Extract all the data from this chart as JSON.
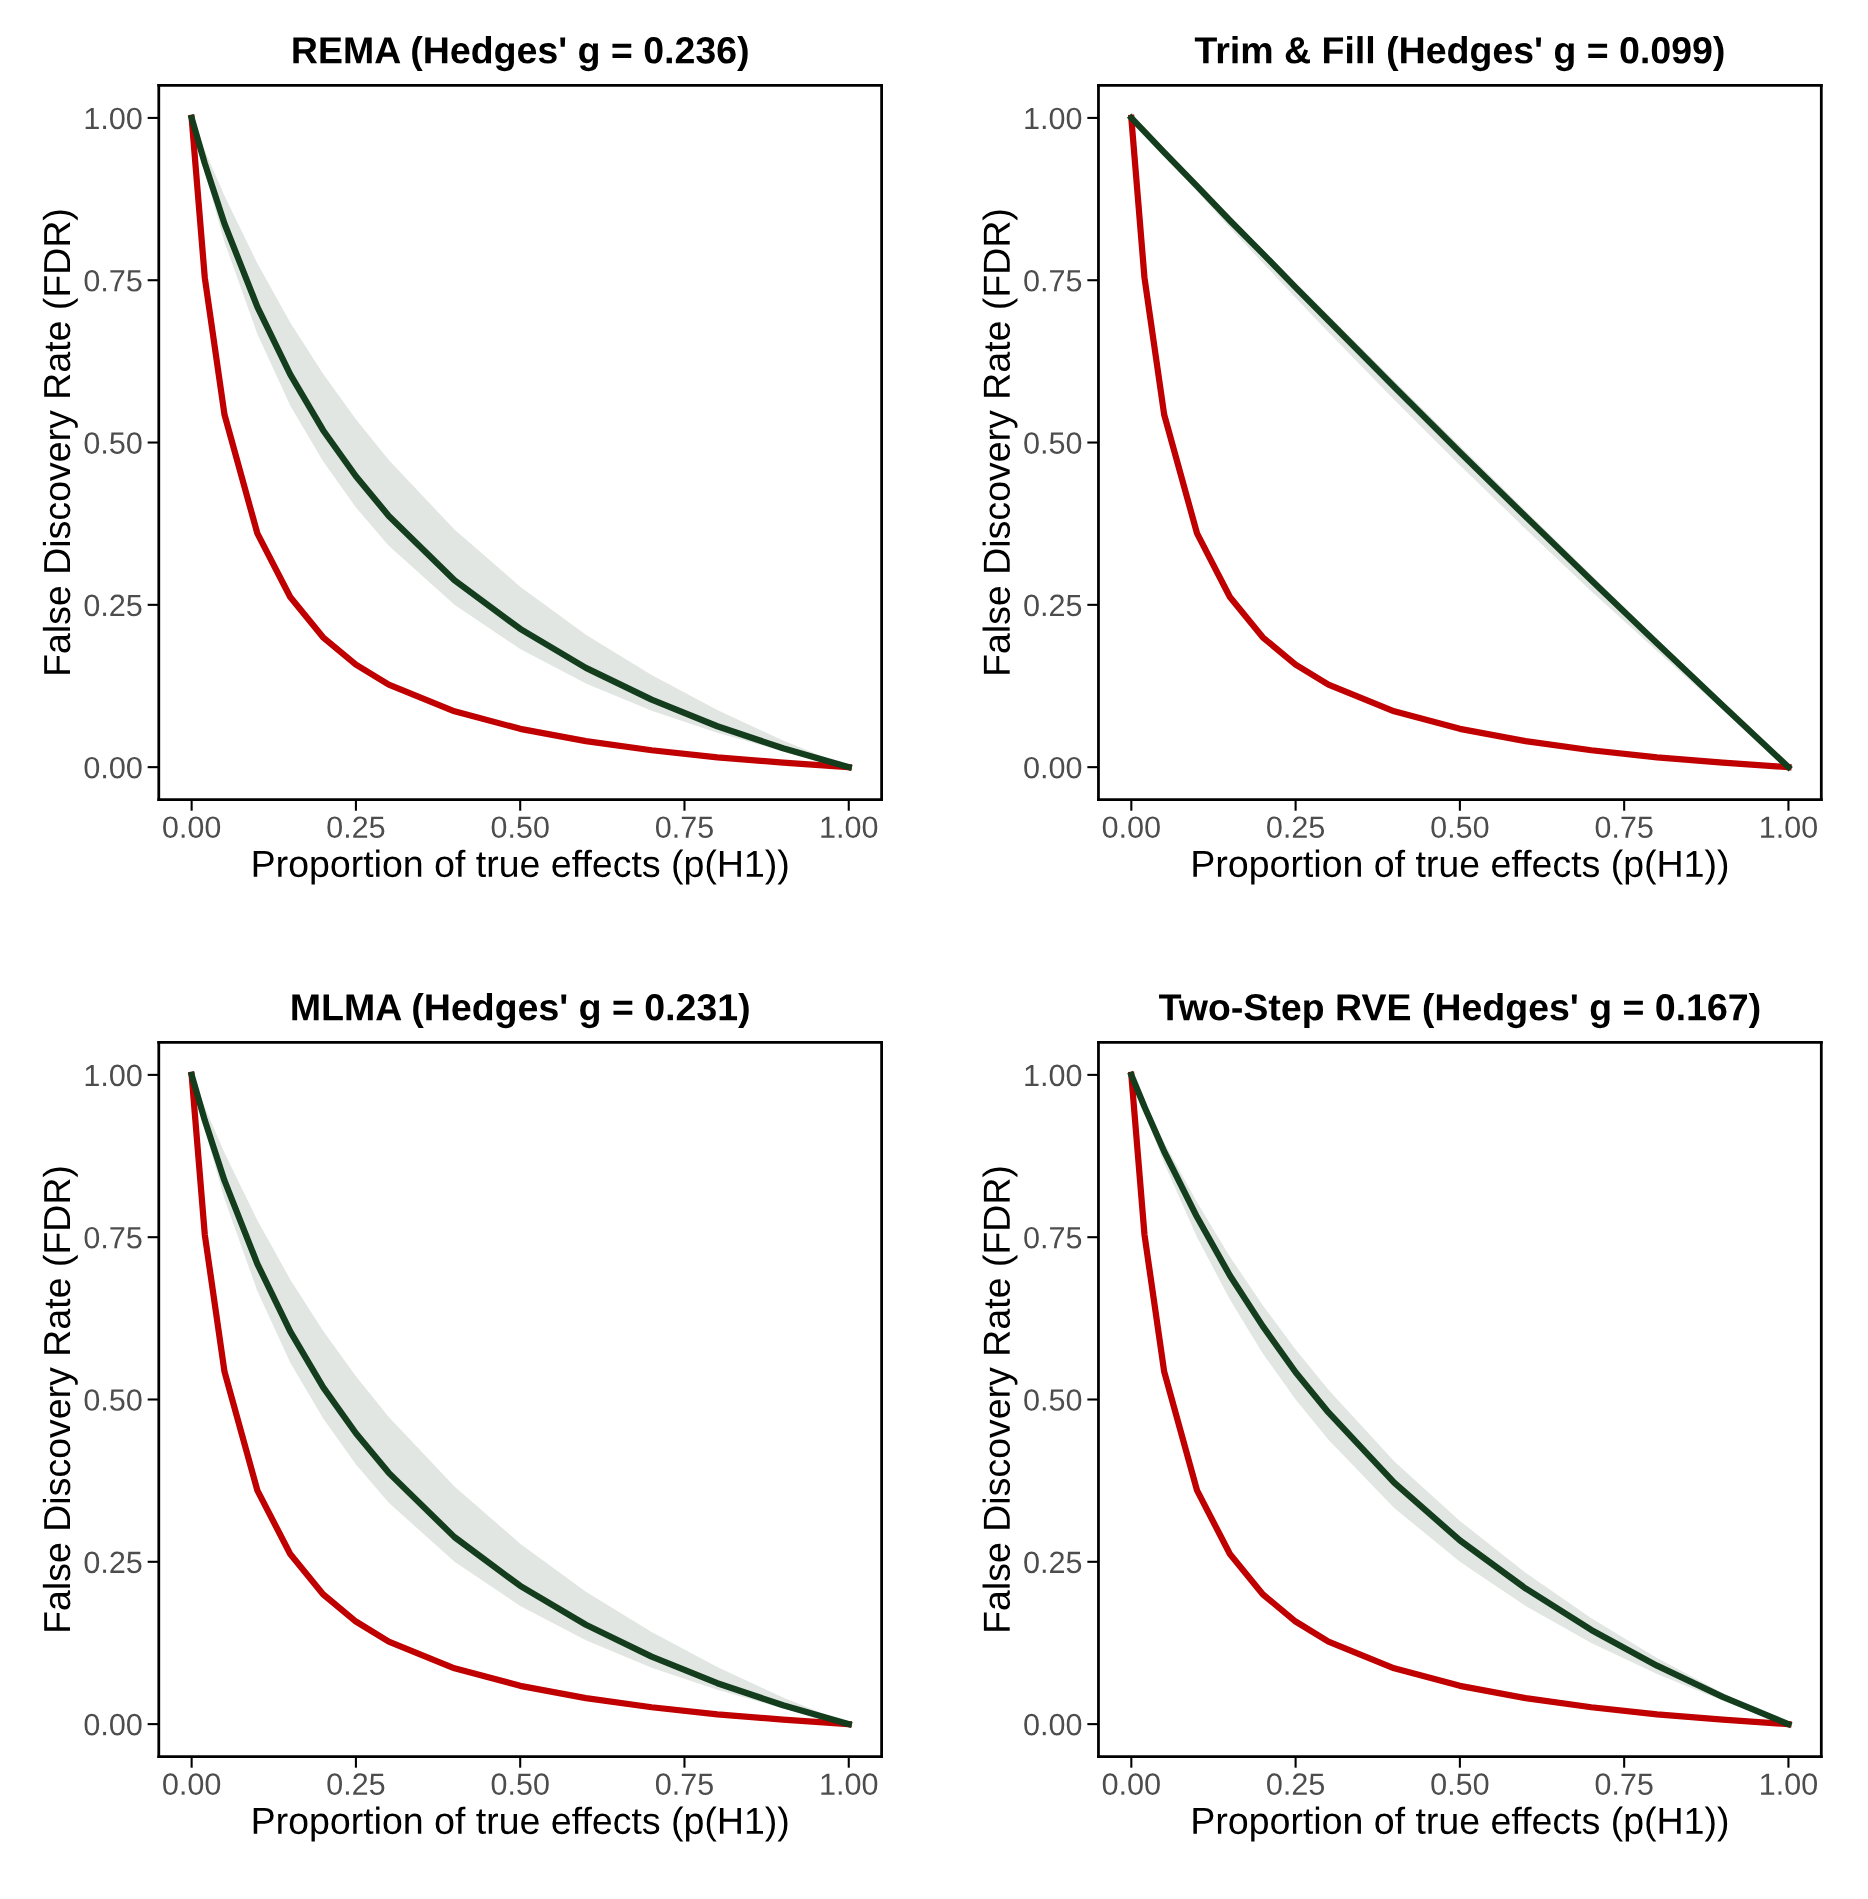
{
  "chart_data": [
    {
      "type": "line",
      "title": "REMA (Hedges' g = 0.236)",
      "xlabel": "Proportion of true effects (p(H1))",
      "ylabel": "False Discovery Rate (FDR)",
      "x": [
        0,
        0.02,
        0.05,
        0.1,
        0.15,
        0.2,
        0.25,
        0.3,
        0.4,
        0.5,
        0.6,
        0.7,
        0.8,
        0.9,
        1
      ],
      "series": [
        {
          "color": "#c00000",
          "values": [
            1,
            0.754,
            0.543,
            0.36,
            0.262,
            0.2,
            0.158,
            0.127,
            0.086,
            0.059,
            0.04,
            0.026,
            0.015,
            0.007,
            0
          ]
        },
        {
          "color": "#143d1e",
          "values": [
            1,
            0.93,
            0.837,
            0.709,
            0.605,
            0.519,
            0.448,
            0.387,
            0.288,
            0.213,
            0.153,
            0.104,
            0.063,
            0.029,
            0
          ],
          "lower": [
            1,
            0.916,
            0.809,
            0.667,
            0.557,
            0.471,
            0.4,
            0.341,
            0.25,
            0.182,
            0.129,
            0.087,
            0.053,
            0.024,
            0
          ],
          "upper": [
            1,
            0.95,
            0.88,
            0.776,
            0.685,
            0.606,
            0.536,
            0.473,
            0.366,
            0.278,
            0.204,
            0.142,
            0.088,
            0.041,
            0
          ]
        }
      ],
      "xlim": [
        -0.05,
        1.05
      ],
      "ylim": [
        -0.05,
        1.05
      ],
      "xticks": [
        {
          "value": 0,
          "label": "0.00"
        },
        {
          "value": 0.25,
          "label": "0.25"
        },
        {
          "value": 0.5,
          "label": "0.50"
        },
        {
          "value": 0.75,
          "label": "0.75"
        },
        {
          "value": 1,
          "label": "1.00"
        }
      ],
      "yticks": [
        {
          "value": 0,
          "label": "0.00"
        },
        {
          "value": 0.25,
          "label": "0.25"
        },
        {
          "value": 0.5,
          "label": "0.50"
        },
        {
          "value": 0.75,
          "label": "0.75"
        },
        {
          "value": 1,
          "label": "1.00"
        }
      ],
      "grid": false,
      "legend": false,
      "line_style": "solid",
      "marker": "none"
    },
    {
      "type": "line",
      "title": "Trim & Fill (Hedges' g = 0.099)",
      "xlabel": "Proportion of true effects (p(H1))",
      "ylabel": "False Discovery Rate (FDR)",
      "x": [
        0,
        0.02,
        0.05,
        0.1,
        0.15,
        0.2,
        0.25,
        0.3,
        0.4,
        0.5,
        0.6,
        0.7,
        0.8,
        0.9,
        1
      ],
      "series": [
        {
          "color": "#c00000",
          "values": [
            1,
            0.754,
            0.543,
            0.36,
            0.262,
            0.2,
            0.158,
            0.127,
            0.086,
            0.059,
            0.04,
            0.026,
            0.015,
            0.007,
            0
          ]
        },
        {
          "color": "#143d1e",
          "values": [
            1,
            0.979,
            0.947,
            0.895,
            0.842,
            0.791,
            0.739,
            0.688,
            0.586,
            0.485,
            0.386,
            0.288,
            0.191,
            0.095,
            0
          ],
          "lower": [
            1,
            0.977,
            0.943,
            0.887,
            0.831,
            0.777,
            0.723,
            0.67,
            0.566,
            0.465,
            0.367,
            0.271,
            0.179,
            0.088,
            0
          ],
          "upper": [
            1,
            0.98,
            0.949,
            0.898,
            0.847,
            0.797,
            0.746,
            0.696,
            0.595,
            0.495,
            0.395,
            0.296,
            0.197,
            0.098,
            0
          ]
        }
      ],
      "xlim": [
        -0.05,
        1.05
      ],
      "ylim": [
        -0.05,
        1.05
      ],
      "xticks": [
        {
          "value": 0,
          "label": "0.00"
        },
        {
          "value": 0.25,
          "label": "0.25"
        },
        {
          "value": 0.5,
          "label": "0.50"
        },
        {
          "value": 0.75,
          "label": "0.75"
        },
        {
          "value": 1,
          "label": "1.00"
        }
      ],
      "yticks": [
        {
          "value": 0,
          "label": "0.00"
        },
        {
          "value": 0.25,
          "label": "0.25"
        },
        {
          "value": 0.5,
          "label": "0.50"
        },
        {
          "value": 0.75,
          "label": "0.75"
        },
        {
          "value": 1,
          "label": "1.00"
        }
      ],
      "grid": false,
      "legend": false,
      "line_style": "solid",
      "marker": "none"
    },
    {
      "type": "line",
      "title": "MLMA (Hedges' g = 0.231)",
      "xlabel": "Proportion of true effects (p(H1))",
      "ylabel": "False Discovery Rate (FDR)",
      "x": [
        0,
        0.02,
        0.05,
        0.1,
        0.15,
        0.2,
        0.25,
        0.3,
        0.4,
        0.5,
        0.6,
        0.7,
        0.8,
        0.9,
        1
      ],
      "series": [
        {
          "color": "#c00000",
          "values": [
            1,
            0.754,
            0.543,
            0.36,
            0.262,
            0.2,
            0.158,
            0.127,
            0.086,
            0.059,
            0.04,
            0.026,
            0.015,
            0.007,
            0
          ]
        },
        {
          "color": "#143d1e",
          "values": [
            1,
            0.93,
            0.837,
            0.709,
            0.605,
            0.519,
            0.448,
            0.387,
            0.288,
            0.213,
            0.153,
            0.104,
            0.063,
            0.029,
            0
          ],
          "lower": [
            1,
            0.916,
            0.809,
            0.667,
            0.557,
            0.471,
            0.4,
            0.341,
            0.25,
            0.182,
            0.129,
            0.087,
            0.053,
            0.024,
            0
          ],
          "upper": [
            1,
            0.95,
            0.88,
            0.776,
            0.685,
            0.606,
            0.536,
            0.473,
            0.366,
            0.278,
            0.204,
            0.142,
            0.088,
            0.041,
            0
          ]
        }
      ],
      "xlim": [
        -0.05,
        1.05
      ],
      "ylim": [
        -0.05,
        1.05
      ],
      "xticks": [
        {
          "value": 0,
          "label": "0.00"
        },
        {
          "value": 0.25,
          "label": "0.25"
        },
        {
          "value": 0.5,
          "label": "0.50"
        },
        {
          "value": 0.75,
          "label": "0.75"
        },
        {
          "value": 1,
          "label": "1.00"
        }
      ],
      "yticks": [
        {
          "value": 0,
          "label": "0.00"
        },
        {
          "value": 0.25,
          "label": "0.25"
        },
        {
          "value": 0.5,
          "label": "0.50"
        },
        {
          "value": 0.75,
          "label": "0.75"
        },
        {
          "value": 1,
          "label": "1.00"
        }
      ],
      "grid": false,
      "legend": false,
      "line_style": "solid",
      "marker": "none"
    },
    {
      "type": "line",
      "title": "Two-Step RVE (Hedges' g = 0.167)",
      "xlabel": "Proportion of true effects (p(H1))",
      "ylabel": "False Discovery Rate (FDR)",
      "x": [
        0,
        0.02,
        0.05,
        0.1,
        0.15,
        0.2,
        0.25,
        0.3,
        0.4,
        0.5,
        0.6,
        0.7,
        0.8,
        0.9,
        1
      ],
      "series": [
        {
          "color": "#c00000",
          "values": [
            1,
            0.754,
            0.543,
            0.36,
            0.262,
            0.2,
            0.158,
            0.127,
            0.086,
            0.059,
            0.04,
            0.026,
            0.015,
            0.007,
            0
          ]
        },
        {
          "color": "#143d1e",
          "values": [
            1,
            0.951,
            0.882,
            0.781,
            0.691,
            0.613,
            0.542,
            0.48,
            0.372,
            0.283,
            0.209,
            0.145,
            0.09,
            0.042,
            0
          ],
          "lower": [
            1,
            0.942,
            0.864,
            0.75,
            0.654,
            0.571,
            0.5,
            0.438,
            0.333,
            0.25,
            0.182,
            0.125,
            0.077,
            0.036,
            0
          ],
          "upper": [
            1,
            0.957,
            0.896,
            0.804,
            0.72,
            0.645,
            0.577,
            0.515,
            0.405,
            0.313,
            0.233,
            0.163,
            0.102,
            0.048,
            0
          ]
        }
      ],
      "xlim": [
        -0.05,
        1.05
      ],
      "ylim": [
        -0.05,
        1.05
      ],
      "xticks": [
        {
          "value": 0,
          "label": "0.00"
        },
        {
          "value": 0.25,
          "label": "0.25"
        },
        {
          "value": 0.5,
          "label": "0.50"
        },
        {
          "value": 0.75,
          "label": "0.75"
        },
        {
          "value": 1,
          "label": "1.00"
        }
      ],
      "yticks": [
        {
          "value": 0,
          "label": "0.00"
        },
        {
          "value": 0.25,
          "label": "0.25"
        },
        {
          "value": 0.5,
          "label": "0.50"
        },
        {
          "value": 0.75,
          "label": "0.75"
        },
        {
          "value": 1,
          "label": "1.00"
        }
      ],
      "grid": false,
      "legend": false,
      "line_style": "solid",
      "marker": "none"
    }
  ]
}
